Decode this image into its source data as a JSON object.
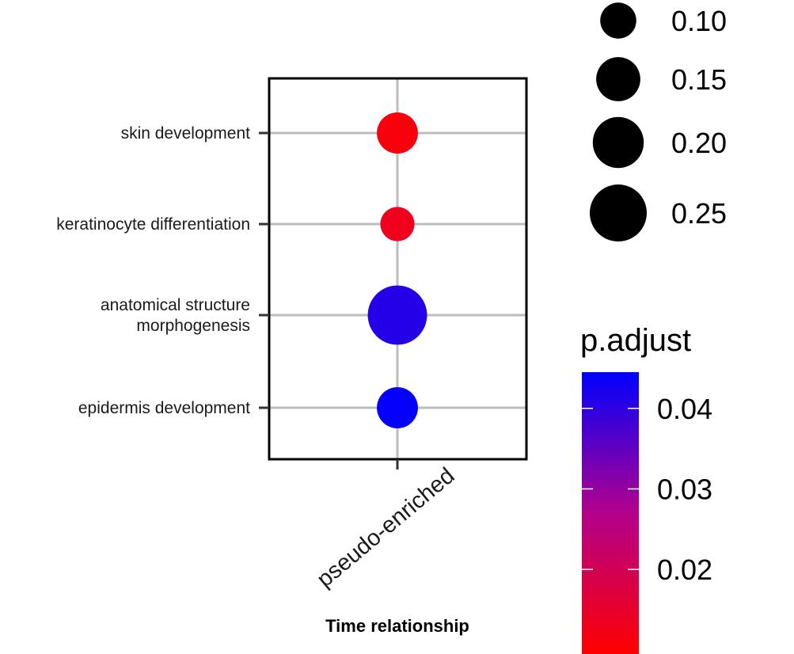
{
  "chart_data": {
    "type": "scatter",
    "xlabel": "Time relationship",
    "ylabel": "",
    "categories_x": [
      "pseudo-enriched"
    ],
    "categories_y": [
      "skin development",
      "keratinocyte differentiation",
      [
        "anatomical structure",
        "morphogenesis"
      ],
      "epidermis development"
    ],
    "points": [
      {
        "x": "pseudo-enriched",
        "y_index": 0,
        "size": 0.13,
        "p_adjust": 0.011
      },
      {
        "x": "pseudo-enriched",
        "y_index": 1,
        "size": 0.09,
        "p_adjust": 0.013
      },
      {
        "x": "pseudo-enriched",
        "y_index": 2,
        "size": 0.27,
        "p_adjust": 0.041
      },
      {
        "x": "pseudo-enriched",
        "y_index": 3,
        "size": 0.13,
        "p_adjust": 0.044
      }
    ],
    "size_legend": {
      "labels": [
        "0.10",
        "0.15",
        "0.20",
        "0.25"
      ],
      "values": [
        0.1,
        0.15,
        0.2,
        0.25
      ],
      "color": "#000000"
    },
    "color_legend": {
      "title": "p.adjust",
      "labels": [
        "0.04",
        "0.03",
        "0.02"
      ],
      "values": [
        0.04,
        0.03,
        0.02
      ],
      "low": 0.0095,
      "high": 0.0445,
      "low_color": "#ff0000",
      "high_color": "#0000ff"
    },
    "grid": true,
    "legend_position": "right"
  }
}
